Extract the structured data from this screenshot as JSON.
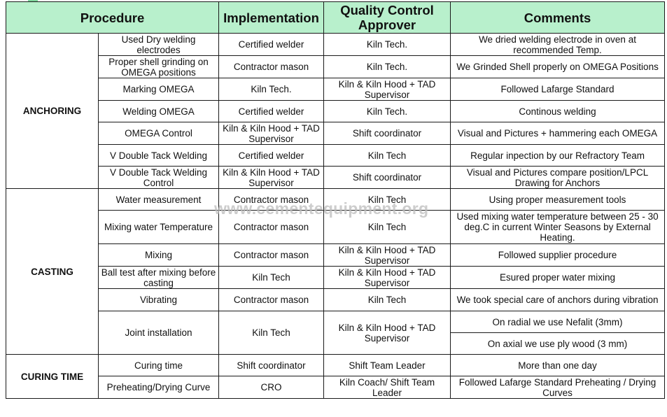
{
  "headers": {
    "procedure": "Procedure",
    "implementation": "Implementation",
    "qc_approver": "Quality Control Approver",
    "comments": "Comments"
  },
  "groups": {
    "anchoring": "ANCHORING",
    "casting": "CASTING",
    "curing": "CURING TIME"
  },
  "rows": [
    {
      "procedure": "Used Dry welding electrodes",
      "implementation": "Certified welder",
      "approver": "Kiln Tech.",
      "comment": "We dried welding electrode in oven at recommended Temp."
    },
    {
      "procedure": "Proper shell grinding on OMEGA positions",
      "implementation": "Contractor mason",
      "approver": "Kiln Tech.",
      "comment": "We Grinded Shell properly on OMEGA Positions"
    },
    {
      "procedure": "Marking OMEGA",
      "implementation": "Kiln Tech.",
      "approver": "Kiln & Kiln Hood + TAD Supervisor",
      "comment": "Followed Lafarge Standard"
    },
    {
      "procedure": "Welding OMEGA",
      "implementation": "Certified welder",
      "approver": "Kiln Tech.",
      "comment": "Continous welding"
    },
    {
      "procedure": "OMEGA Control",
      "implementation": "Kiln & Kiln Hood + TAD Supervisor",
      "approver": "Shift coordinator",
      "comment": "Visual and Pictures + hammering each OMEGA"
    },
    {
      "procedure": "V Double Tack Welding",
      "implementation": "Certified welder",
      "approver": "Kiln Tech",
      "comment": "Regular inpection by our Refractory Team"
    },
    {
      "procedure": "V Double Tack Welding Control",
      "implementation": "Kiln & Kiln Hood + TAD Supervisor",
      "approver": "Shift coordinator",
      "comment": "Visual and Pictures compare position/LPCL Drawing for Anchors"
    },
    {
      "procedure": "Water measurement",
      "implementation": "Contractor mason",
      "approver": "Kiln Tech",
      "comment": "Using proper measurement tools"
    },
    {
      "procedure": "Mixing water Temperature",
      "implementation": "Contractor mason",
      "approver": "Kiln Tech",
      "comment": "Used mixing water temperature between 25 - 30 deg.C in current Winter Seasons by External Heating."
    },
    {
      "procedure": "Mixing",
      "implementation": "Contractor mason",
      "approver": "Kiln & Kiln Hood + TAD Supervisor",
      "comment": "Followed supplier procedure"
    },
    {
      "procedure": "Ball test after mixing before casting",
      "implementation": "Kiln Tech",
      "approver": "Kiln & Kiln Hood + TAD Supervisor",
      "comment": "Esured proper water mixing"
    },
    {
      "procedure": "Vibrating",
      "implementation": "Contractor mason",
      "approver": "Kiln Tech",
      "comment": "We took special care of anchors during vibration"
    },
    {
      "procedure": "Joint installation",
      "implementation": "Kiln Tech",
      "approver": "Kiln & Kiln Hood + TAD Supervisor",
      "comment": "On radial we use Nefalit (3mm)",
      "comment2": "On axial we use ply wood (3 mm)"
    },
    {
      "procedure": "Curing time",
      "implementation": "Shift coordinator",
      "approver": "Shift Team Leader",
      "comment": "More than one day"
    },
    {
      "procedure": "Preheating/Drying Curve",
      "implementation": "CRO",
      "approver": "Kiln Coach/ Shift Team Leader",
      "comment": "Followed Lafarge Standard Preheating / Drying Curves"
    }
  ],
  "watermark": "www.cementequipment.org",
  "colors": {
    "header_bg": "#b8f0cc",
    "border": "#1a1a1a",
    "watermark": "#bdbdbd"
  }
}
